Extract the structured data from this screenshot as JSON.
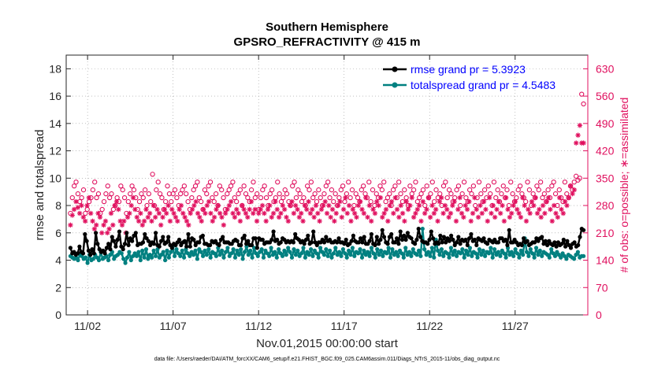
{
  "chart_data": {
    "type": "line",
    "title": "Southern Hemisphere",
    "subtitle": "GPSRO_REFRACTIVITY @ 415 m",
    "xlabel": "Nov.01,2015 00:00:00 start",
    "ylabel": "rmse and totalspread",
    "ylabel_right": "# of obs: o=possible; ∗=assimilated",
    "footnote": "data file: /Users/raeder/DAI/ATM_forcXX/CAM6_setup/f.e21.FHIST_BGC.f09_025.CAM6assim.011/Diags_NTrS_2015-11/obs_diag_output.nc",
    "x_ticks": [
      "11/02",
      "11/07",
      "11/12",
      "11/17",
      "11/22",
      "11/27"
    ],
    "x_tick_days": [
      2,
      7,
      12,
      17,
      22,
      27
    ],
    "xlim": [
      0.75,
      31.25
    ],
    "ylim": [
      0,
      19
    ],
    "y_ticks": [
      "0",
      "2",
      "4",
      "6",
      "8",
      "10",
      "12",
      "14",
      "16",
      "18"
    ],
    "ylim_right": [
      0,
      665
    ],
    "y_ticks_right": [
      "0",
      "70",
      "140",
      "210",
      "280",
      "350",
      "420",
      "490",
      "560",
      "630"
    ],
    "legend": [
      "rmse grand pr = 5.3923",
      "totalspread grand pr = 4.5483"
    ],
    "legend_position": "top-right",
    "colors": {
      "rmse": "#000000",
      "spread": "#008080",
      "obs": "#e0115f"
    },
    "series": [
      {
        "name": "rmse",
        "color": "#000000",
        "values": [
          4.9,
          4.5,
          4.6,
          4.4,
          4.5,
          5.0,
          4.6,
          4.5,
          5.9,
          5.4,
          4.7,
          4.4,
          4.8,
          4.5,
          6.0,
          5.2,
          4.8,
          4.6,
          4.7,
          4.5,
          4.9,
          5.2,
          4.8,
          5.7,
          5.4,
          5.0,
          5.5,
          6.1,
          5.0,
          4.8,
          5.2,
          6.0,
          5.1,
          5.6,
          5.4,
          5.8,
          6.0,
          5.1,
          5.2,
          5.2,
          5.3,
          5.9,
          5.6,
          5.4,
          5.1,
          5.3,
          5.2,
          6.0,
          5.1,
          5.0,
          5.4,
          5.7,
          5.2,
          5.3,
          5.7,
          5.1,
          4.9,
          5.2,
          5.1,
          5.3,
          5.5,
          5.1,
          5.3,
          5.4,
          5.0,
          5.9,
          5.0,
          5.6,
          5.5,
          5.1,
          5.3,
          5.3,
          5.7,
          5.8,
          5.2,
          5.2,
          5.1,
          5.1,
          5.4,
          5.3,
          5.4,
          5.2,
          5.1,
          5.5,
          5.7,
          5.3,
          5.3,
          5.3,
          5.2,
          5.2,
          5.4,
          5.5,
          5.4,
          5.1,
          5.1,
          5.6,
          5.8,
          5.2,
          5.4,
          5.1,
          5.1,
          5.6,
          5.6,
          4.9,
          5.6,
          5.5,
          5.5,
          5.2,
          5.3,
          5.3,
          5.3,
          5.5,
          6.1,
          5.4,
          5.5,
          5.2,
          5.3,
          5.6,
          5.5,
          5.3,
          5.4,
          5.3,
          5.4,
          5.3,
          5.9,
          5.6,
          5.5,
          5.3,
          5.4,
          5.2,
          5.5,
          5.8,
          5.2,
          5.3,
          6.1,
          5.3,
          5.1,
          5.3,
          5.3,
          5.5,
          5.3,
          5.7,
          5.4,
          5.5,
          5.3,
          5.3,
          5.4,
          5.3,
          5.6,
          5.3,
          5.3,
          5.2,
          5.5,
          5.1,
          5.2,
          5.4,
          5.8,
          5.4,
          5.3,
          5.3,
          5.6,
          5.3,
          5.7,
          5.2,
          5.2,
          5.4,
          5.9,
          5.2,
          5.1,
          5.7,
          5.2,
          5.5,
          6.2,
          5.7,
          5.3,
          5.2,
          5.7,
          5.9,
          5.3,
          5.3,
          5.6,
          5.2,
          6.1,
          5.5,
          5.8,
          5.5,
          6.0,
          5.7,
          5.6,
          5.3,
          5.2,
          5.5,
          6.3,
          5.7,
          5.4,
          5.3,
          5.3,
          5.2,
          5.5,
          6.1,
          5.6,
          5.2,
          5.3,
          5.2,
          5.8,
          5.3,
          5.7,
          5.3,
          5.6,
          5.4,
          5.8,
          5.5,
          5.1,
          5.3,
          5.7,
          5.2,
          5.5,
          5.4,
          5.5,
          5.1,
          5.6,
          5.9,
          5.4,
          5.5,
          5.1,
          5.6,
          5.5,
          5.4,
          5.6,
          5.3,
          5.2,
          5.5,
          5.4,
          5.3,
          5.5,
          5.3,
          5.3,
          5.6,
          5.6,
          5.4,
          5.5,
          5.1,
          6.2,
          5.3,
          5.3,
          5.5,
          5.3,
          5.1,
          5.2,
          5.1,
          5.6,
          5.3,
          5.4,
          5.1,
          5.2,
          5.3,
          5.3,
          5.6,
          5.4,
          5.6,
          5.7,
          5.2,
          5.4,
          5.1,
          5.4,
          5.2,
          5.1,
          5.3,
          5.0,
          5.3,
          5.1,
          5.2,
          5.5,
          5.0,
          5.4,
          5.1,
          4.9,
          5.2,
          5.3,
          5.0,
          5.1,
          5.7,
          6.3,
          6.2
        ]
      },
      {
        "name": "totalspread",
        "color": "#008080",
        "values": [
          4.3,
          4.2,
          4.1,
          4.2,
          4.0,
          4.4,
          4.3,
          4.1,
          4.2,
          3.8,
          4.4,
          4.0,
          4.1,
          4.4,
          4.2,
          4.0,
          4.6,
          4.1,
          4.2,
          4.3,
          4.0,
          4.4,
          4.6,
          4.1,
          4.3,
          4.4,
          4.6,
          4.5,
          4.1,
          3.8,
          4.2,
          4.6,
          4.0,
          4.3,
          4.5,
          4.3,
          4.6,
          4.0,
          4.7,
          4.2,
          4.8,
          4.1,
          4.4,
          4.2,
          4.7,
          4.3,
          4.8,
          4.2,
          4.4,
          4.6,
          4.0,
          4.7,
          4.2,
          4.6,
          5.0,
          4.3,
          4.8,
          4.5,
          4.3,
          4.7,
          4.2,
          4.8,
          4.5,
          4.3,
          4.6,
          4.4,
          4.7,
          4.1,
          4.8,
          4.6,
          4.3,
          4.7,
          4.4,
          4.8,
          4.2,
          4.6,
          4.5,
          4.3,
          4.9,
          4.4,
          4.7,
          4.2,
          4.6,
          4.9,
          4.3,
          4.5,
          4.8,
          4.2,
          4.7,
          4.4,
          4.8,
          4.1,
          4.6,
          5.0,
          4.4,
          4.7,
          4.2,
          4.9,
          4.5,
          4.3,
          4.6,
          4.8,
          4.2,
          4.7,
          4.5,
          4.3,
          4.9,
          4.4,
          4.6,
          4.2,
          4.8,
          4.5,
          4.3,
          4.7,
          4.4,
          4.9,
          4.6,
          4.2,
          4.8,
          4.4,
          4.7,
          4.3,
          4.5,
          4.9,
          4.2,
          4.6,
          4.4,
          4.8,
          4.3,
          4.7,
          4.5,
          4.2,
          4.9,
          4.6,
          4.4,
          4.8,
          4.3,
          4.7,
          4.2,
          4.5,
          4.9,
          4.4,
          4.6,
          4.3,
          4.8,
          4.5,
          4.2,
          4.7,
          4.4,
          4.9,
          4.3,
          4.6,
          4.5,
          4.8,
          4.2,
          4.7,
          4.4,
          4.6,
          4.3,
          4.9,
          4.5,
          4.2,
          4.8,
          4.4,
          4.7,
          4.3,
          4.6,
          4.5,
          4.9,
          4.2,
          4.8,
          4.4,
          4.6,
          4.3,
          4.7,
          4.5,
          4.2,
          4.9,
          4.4,
          4.6,
          4.3,
          4.8,
          4.5,
          4.4,
          4.7,
          4.3,
          6.3,
          4.8,
          4.4,
          4.6,
          4.3,
          4.9,
          4.2,
          5.5,
          4.7,
          4.4,
          4.8,
          4.3,
          4.6,
          4.5,
          4.2,
          4.9,
          4.4,
          4.7,
          4.3,
          4.6,
          4.5,
          4.8,
          4.2,
          4.7,
          4.4,
          4.9,
          4.3,
          4.6,
          4.5,
          4.2,
          4.8,
          4.4,
          4.7,
          4.3,
          4.6,
          4.5,
          4.9,
          4.2,
          4.8,
          4.4,
          4.6,
          4.3,
          4.7,
          4.5,
          4.2,
          4.9,
          4.4,
          4.6,
          4.3,
          4.8,
          4.5,
          4.2,
          4.7,
          4.4,
          5.6,
          4.6,
          4.3,
          4.8,
          4.5,
          4.2,
          4.9,
          4.4,
          4.7,
          4.3,
          4.6,
          4.5,
          4.4,
          4.2,
          4.8,
          4.5,
          4.3,
          4.6,
          4.4,
          4.2,
          4.5,
          4.3,
          4.1,
          4.4,
          4.3,
          4.2,
          4.1,
          4.4,
          4.6,
          4.2,
          4.3,
          4.3
        ]
      },
      {
        "name": "obs_possible",
        "color": "#e0115f",
        "marker": "o",
        "values": [
          260,
          300,
          330,
          340,
          310,
          290,
          300,
          320,
          260,
          270,
          290,
          300,
          320,
          340,
          300,
          310,
          260,
          270,
          290,
          310,
          330,
          300,
          310,
          270,
          280,
          300,
          290,
          330,
          320,
          300,
          260,
          290,
          310,
          330,
          320,
          300,
          270,
          290,
          310,
          300,
          320,
          280,
          310,
          290,
          360,
          280,
          320,
          340,
          310,
          300,
          270,
          290,
          330,
          310,
          290,
          310,
          320,
          300,
          280,
          310,
          320,
          330,
          310,
          290,
          270,
          300,
          320,
          330,
          340,
          300,
          290,
          270,
          320,
          310,
          330,
          340,
          300,
          290,
          310,
          280,
          330,
          320,
          300,
          270,
          310,
          320,
          330,
          340,
          300,
          290,
          310,
          320,
          280,
          330,
          310,
          300,
          290,
          320,
          340,
          300,
          310,
          270,
          300,
          320,
          330,
          300,
          280,
          310,
          320,
          290,
          300,
          340,
          310,
          290,
          300,
          320,
          310,
          290,
          280,
          330,
          340,
          300,
          320,
          310,
          290,
          300,
          280,
          330,
          320,
          340,
          300,
          310,
          290,
          320,
          300,
          280,
          310,
          330,
          340,
          300,
          320,
          290,
          310,
          280,
          300,
          320,
          330,
          290,
          310,
          340,
          300,
          320,
          280,
          310,
          300,
          290,
          320,
          330,
          310,
          300,
          340,
          290,
          320,
          280,
          310,
          300,
          330,
          320,
          340,
          290,
          300,
          310,
          280,
          320,
          330,
          300,
          340,
          310,
          290,
          320,
          300,
          280,
          330,
          310,
          320,
          340,
          290,
          300,
          310,
          320,
          280,
          330,
          300,
          310,
          340,
          290,
          320,
          300,
          310,
          280,
          330,
          340,
          300,
          320,
          310,
          290,
          300,
          320,
          330,
          280,
          310,
          340,
          300,
          290,
          320,
          310,
          330,
          280,
          300,
          340,
          310,
          290,
          320,
          300,
          330,
          310,
          280,
          340,
          300,
          320,
          290,
          310,
          330,
          300,
          320,
          280,
          340,
          310,
          290,
          300,
          320,
          330,
          310,
          300,
          290,
          340,
          320,
          280,
          310,
          300,
          330,
          320,
          340,
          300,
          310,
          290,
          320,
          300,
          330,
          340,
          310,
          280,
          320,
          300,
          290,
          340,
          310,
          300,
          330,
          320,
          340,
          355,
          345,
          350,
          565,
          540
        ]
      },
      {
        "name": "obs_assimilated",
        "color": "#e0115f",
        "marker": "*",
        "values": [
          230,
          255,
          270,
          290,
          275,
          260,
          280,
          250,
          240,
          280,
          300,
          260,
          240,
          220,
          230,
          260,
          250,
          210,
          230,
          240,
          210,
          220,
          260,
          230,
          280,
          290,
          270,
          240,
          230,
          240,
          210,
          250,
          260,
          280,
          300,
          270,
          250,
          240,
          260,
          230,
          240,
          270,
          250,
          260,
          240,
          280,
          250,
          270,
          260,
          230,
          250,
          270,
          260,
          280,
          240,
          270,
          260,
          250,
          240,
          270,
          280,
          260,
          250,
          240,
          230,
          260,
          270,
          280,
          290,
          260,
          250,
          240,
          270,
          260,
          280,
          290,
          260,
          240,
          250,
          270,
          280,
          260,
          250,
          230,
          260,
          270,
          280,
          290,
          260,
          250,
          270,
          260,
          240,
          280,
          270,
          260,
          250,
          270,
          290,
          260,
          270,
          240,
          260,
          270,
          280,
          260,
          240,
          270,
          280,
          250,
          260,
          290,
          270,
          250,
          260,
          280,
          270,
          250,
          240,
          280,
          290,
          260,
          280,
          270,
          250,
          260,
          240,
          280,
          270,
          290,
          260,
          270,
          250,
          280,
          260,
          240,
          270,
          280,
          290,
          260,
          280,
          250,
          270,
          240,
          260,
          280,
          290,
          250,
          270,
          300,
          260,
          280,
          240,
          270,
          260,
          250,
          280,
          290,
          270,
          260,
          300,
          250,
          280,
          240,
          270,
          260,
          290,
          280,
          300,
          250,
          260,
          270,
          240,
          280,
          290,
          260,
          300,
          270,
          250,
          280,
          260,
          240,
          290,
          270,
          280,
          300,
          250,
          260,
          270,
          280,
          240,
          290,
          260,
          270,
          300,
          250,
          280,
          260,
          270,
          240,
          290,
          300,
          260,
          280,
          270,
          250,
          260,
          280,
          290,
          240,
          270,
          300,
          260,
          250,
          280,
          270,
          290,
          240,
          260,
          300,
          270,
          250,
          280,
          260,
          290,
          270,
          240,
          300,
          260,
          280,
          250,
          270,
          290,
          260,
          280,
          240,
          300,
          270,
          250,
          260,
          280,
          290,
          270,
          260,
          250,
          300,
          280,
          240,
          270,
          260,
          290,
          280,
          300,
          260,
          270,
          250,
          280,
          260,
          290,
          300,
          270,
          240,
          280,
          260,
          250,
          300,
          270,
          260,
          290,
          280,
          300,
          330,
          310,
          320,
          440,
          460,
          485,
          440,
          440
        ]
      }
    ]
  }
}
